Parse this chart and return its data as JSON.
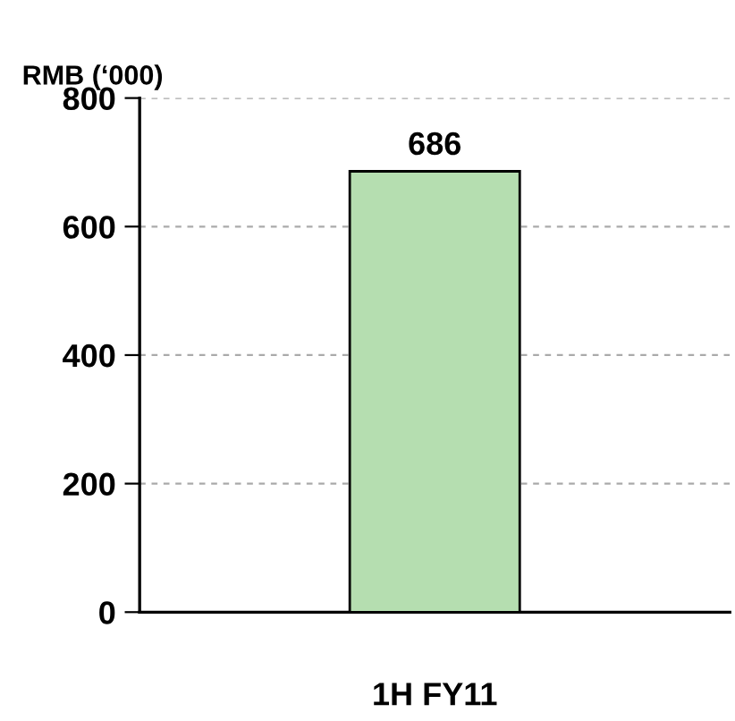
{
  "chart_data": {
    "type": "bar",
    "ylabel": "RMB (‘000)",
    "categories": [
      "1H FY11"
    ],
    "values": [
      686
    ],
    "color": "#b5deb0",
    "ylim": [
      0,
      800
    ],
    "yticks": [
      0,
      200,
      400,
      600,
      800
    ],
    "grid": "y",
    "data_labels": true
  }
}
